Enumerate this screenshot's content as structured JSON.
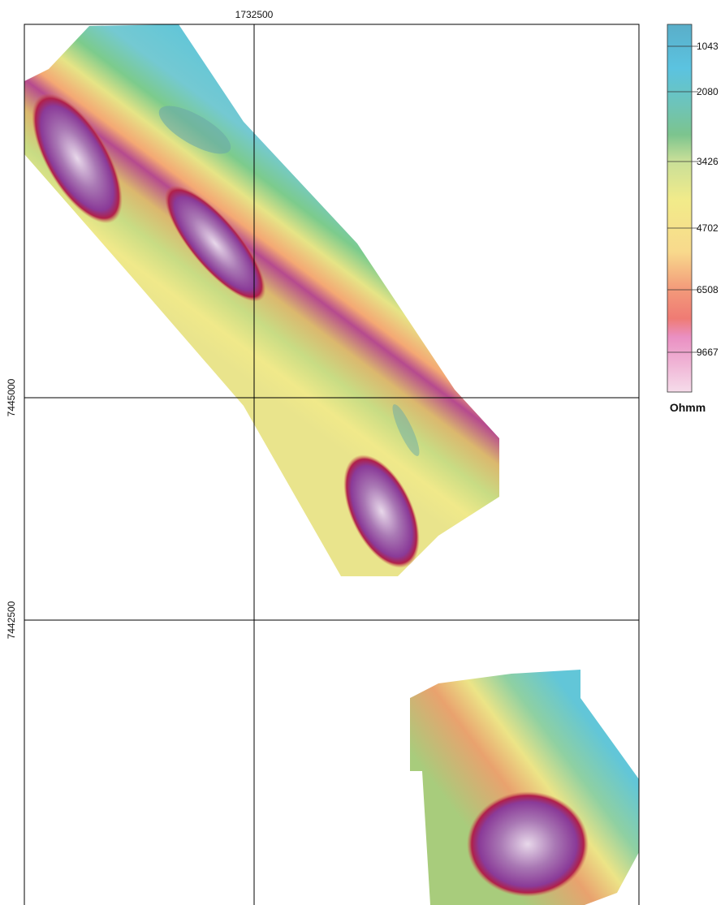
{
  "map": {
    "x_labels": [
      "1732500"
    ],
    "y_labels": [
      "7445000",
      "7442500"
    ]
  },
  "legend": {
    "ticks": [
      "1043",
      "2080",
      "3426",
      "4702",
      "6508",
      "9667"
    ],
    "unit": "Ohmm"
  }
}
